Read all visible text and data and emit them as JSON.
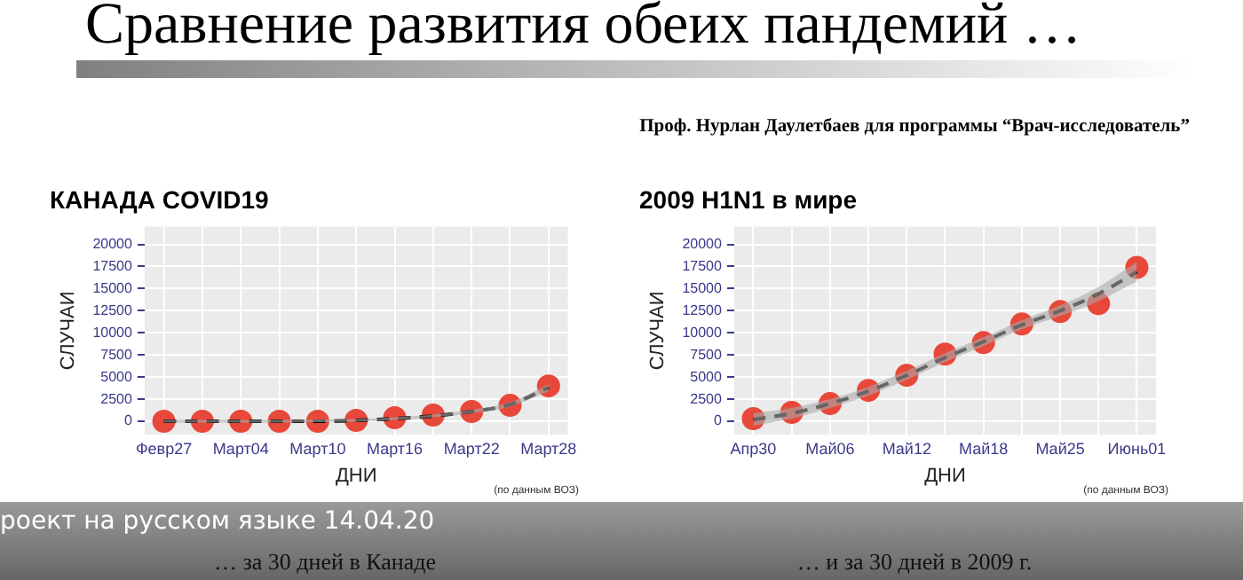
{
  "chart_data": [
    {
      "type": "other",
      "title": "Сравнение развития обеих пандемий …",
      "subtitle": "Проф. Нурлан Даулетбаев для программы “Врач-исследователь”",
      "annotations": [
        "роект на русском языке 14.04.20"
      ]
    },
    {
      "type": "scatter",
      "title": "КАНАДА COVID19",
      "xlabel": "ДНИ",
      "ylabel": "СЛУЧАИ",
      "categories": [
        "Февр27",
        null,
        "Март04",
        null,
        "Март10",
        null,
        "Март16",
        null,
        "Март22",
        null,
        "Март28"
      ],
      "ylim": [
        -1500,
        22000
      ],
      "yticks": [
        0,
        2500,
        5000,
        7500,
        10000,
        12500,
        15000,
        17500,
        20000
      ],
      "grid": true,
      "legend": false,
      "series": [
        {
          "type": "line",
          "color": "#000000",
          "line_style": "dashed",
          "marker": "none",
          "values": [
            0,
            0,
            0,
            0,
            0,
            100,
            300,
            600,
            1100,
            1900,
            3800
          ],
          "lower": [
            -150,
            -150,
            -150,
            -150,
            -100,
            -50,
            150,
            450,
            900,
            1650,
            3400
          ],
          "upper": [
            150,
            150,
            150,
            150,
            200,
            250,
            450,
            750,
            1300,
            2150,
            4200
          ]
        },
        {
          "type": "scatter",
          "color": "#e8483a",
          "marker": "circle",
          "values": [
            0,
            0,
            0,
            0,
            0,
            100,
            400,
            700,
            1100,
            1800,
            4000
          ]
        }
      ],
      "annotations": [
        "(по данным ВОЗ)",
        "… за 30 дней в Канаде"
      ]
    },
    {
      "type": "scatter",
      "title": "2009 H1N1 в мире",
      "xlabel": "ДНИ",
      "ylabel": "СЛУЧАИ",
      "categories": [
        "Апр30",
        null,
        "Май06",
        null,
        "Май12",
        null,
        "Май18",
        null,
        "Май25",
        null,
        "Июнь01"
      ],
      "ylim": [
        -1500,
        22000
      ],
      "yticks": [
        0,
        2500,
        5000,
        7500,
        10000,
        12500,
        15000,
        17500,
        20000
      ],
      "grid": true,
      "legend": false,
      "series": [
        {
          "type": "line",
          "color": "#000000",
          "line_style": "dashed",
          "marker": "none",
          "values": [
            200,
            900,
            2000,
            3400,
            5200,
            7200,
            9000,
            10900,
            12500,
            14400,
            16900
          ],
          "lower": [
            -500,
            300,
            1500,
            2900,
            4700,
            6700,
            8500,
            10400,
            11900,
            13600,
            15800
          ],
          "upper": [
            900,
            1500,
            2500,
            3900,
            5700,
            7700,
            9500,
            11400,
            13100,
            15200,
            18000
          ]
        },
        {
          "type": "scatter",
          "color": "#e8483a",
          "marker": "circle",
          "values": [
            300,
            1000,
            2000,
            3500,
            5200,
            7600,
            8900,
            11000,
            12400,
            13300,
            17400
          ]
        }
      ],
      "annotations": [
        "(по данным ВОЗ)",
        "… и за 30 дней в 2009 г."
      ]
    }
  ]
}
